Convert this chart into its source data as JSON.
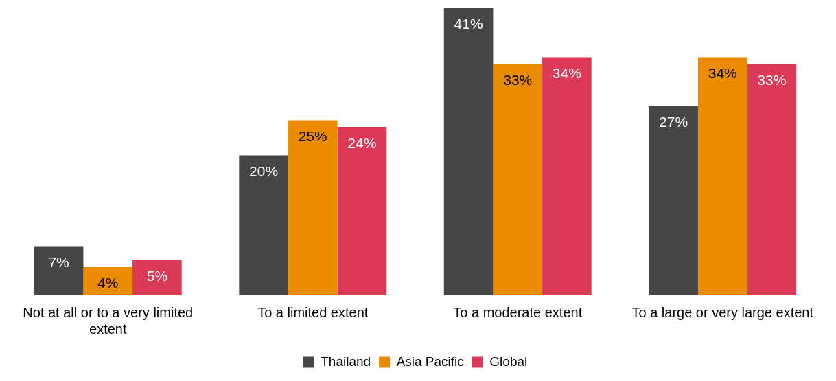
{
  "chart_data": {
    "type": "bar",
    "categories": [
      "Not at all or to a very limited extent",
      "To a limited extent",
      "To a moderate extent",
      "To a large or very large extent"
    ],
    "series": [
      {
        "name": "Thailand",
        "color": "#464646",
        "values": [
          7,
          20,
          41,
          27
        ],
        "value_labels": [
          "7%",
          "20%",
          "41%",
          "27%"
        ]
      },
      {
        "name": "Asia Pacific",
        "color": "#eb8c00",
        "values": [
          4,
          25,
          33,
          34
        ],
        "value_labels": [
          "4%",
          "25%",
          "33%",
          "34%"
        ]
      },
      {
        "name": "Global",
        "color": "#db3a57",
        "values": [
          5,
          24,
          34,
          33
        ],
        "value_labels": [
          "5%",
          "24%",
          "34%",
          "33%"
        ]
      }
    ],
    "grid": false,
    "legend": "bottom"
  }
}
